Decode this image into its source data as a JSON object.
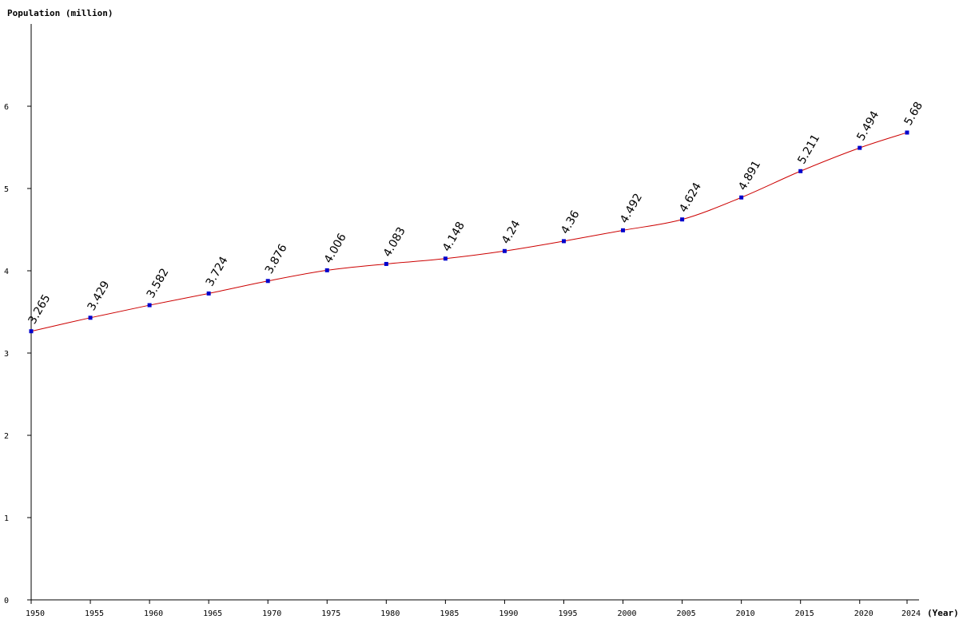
{
  "chart_data": {
    "type": "line",
    "ylabel": "Population (million)",
    "xlabel": "(Year)",
    "x": [
      1950,
      1955,
      1960,
      1965,
      1970,
      1975,
      1980,
      1985,
      1990,
      1995,
      2000,
      2005,
      2010,
      2015,
      2020,
      2024
    ],
    "series": [
      {
        "values": [
          3.265,
          3.429,
          3.582,
          3.724,
          3.876,
          4.006,
          4.083,
          4.148,
          4.24,
          4.36,
          4.492,
          4.624,
          4.891,
          5.211,
          5.494,
          5.68
        ],
        "labels": [
          "3.265",
          "3.429",
          "3.582",
          "3.724",
          "3.876",
          "4.006",
          "4.083",
          "4.148",
          "4.24",
          "4.36",
          "4.492",
          "4.624",
          "4.891",
          "5.211",
          "5.494",
          "5.68"
        ]
      }
    ],
    "x_ticks": [
      "1950",
      "1955",
      "1960",
      "1965",
      "1970",
      "1975",
      "1980",
      "1985",
      "1990",
      "1995",
      "2000",
      "2005",
      "2010",
      "2015",
      "2020",
      "2024"
    ],
    "y_ticks": [
      "0",
      "1",
      "2",
      "3",
      "4",
      "5",
      "6"
    ],
    "y_tick_values": [
      0,
      1,
      2,
      3,
      4,
      5,
      6
    ],
    "ylim": [
      0,
      7
    ],
    "xlim": [
      1950,
      2024
    ],
    "grid": false,
    "line_color": "#cc0000",
    "marker_color": "#0000cc",
    "axis_color": "#000000"
  }
}
